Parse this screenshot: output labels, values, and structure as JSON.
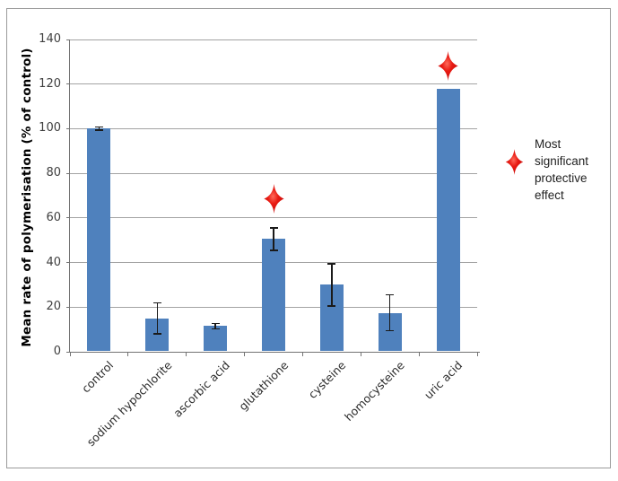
{
  "chart_data": {
    "type": "bar",
    "title": "",
    "xlabel": "",
    "ylabel": "Mean rate of polymerisation (% of control)",
    "categories": [
      "control",
      "sodium hypochlorite",
      "ascorbic acid",
      "glutathione",
      "cysteine",
      "homocysteine",
      "uric acid"
    ],
    "values": [
      100,
      15,
      11.5,
      50.5,
      30,
      17.5,
      118
    ],
    "error_bars_plus_minus": [
      0.7,
      7,
      1.2,
      5,
      9.5,
      8,
      null
    ],
    "ylim": [
      0,
      140
    ],
    "y_tick_step": 20,
    "y_tick_labels": [
      "0",
      "20",
      "40",
      "60",
      "80",
      "100",
      "120",
      "140"
    ],
    "grid": true,
    "bar_color": "#4f81bd",
    "significance_markers": [
      {
        "category": "glutathione",
        "category_index": 3,
        "value": 68.5,
        "symbol": "red-four-point-star"
      },
      {
        "category": "uric acid",
        "category_index": 6,
        "value": 128,
        "symbol": "red-four-point-star"
      }
    ],
    "legend_position": "right"
  },
  "legend": {
    "marker_icon": "red-four-point-star",
    "label": "Most significant protective effect",
    "label_lines": [
      "Most",
      "significant",
      "protective",
      "effect"
    ]
  },
  "colors": {
    "bar_fill": "#4f81bd",
    "star_red_light": "#ff6a5a",
    "star_red": "#e81a12",
    "star_red_dark": "#c00a0a",
    "gridline": "#a3a3a3",
    "axis": "#737373",
    "frame_border": "#9b9b9b",
    "tick_text": "#3f3f3f",
    "error_bar": "#1a1a1a"
  }
}
